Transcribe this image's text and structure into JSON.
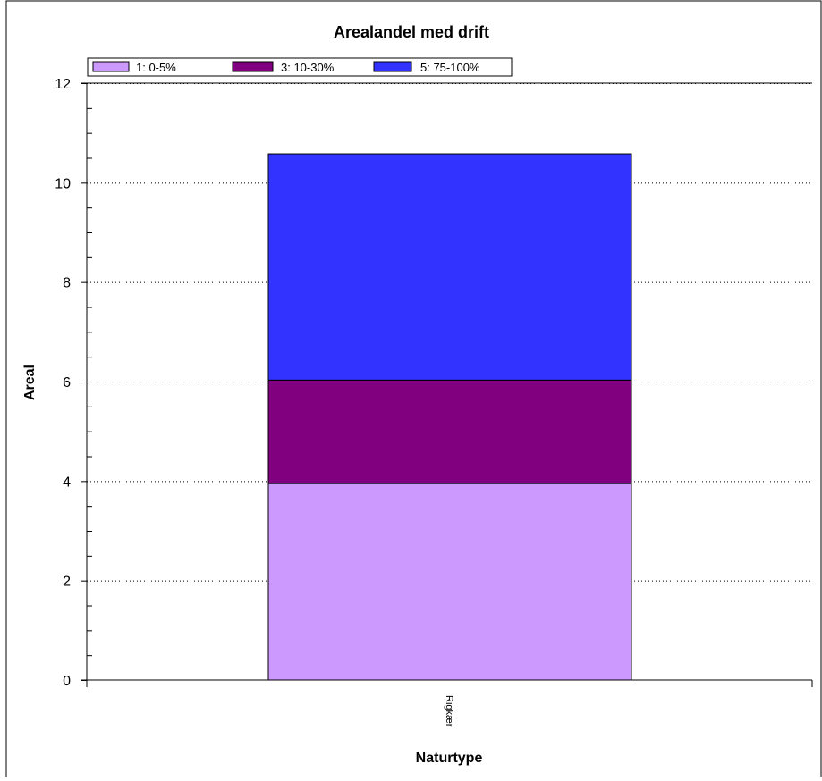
{
  "chart_data": {
    "type": "bar",
    "stacked": true,
    "title": "Arealandel med drift",
    "xlabel": "Naturtype",
    "ylabel": "Areal",
    "categories": [
      "Rigkær"
    ],
    "series": [
      {
        "name": "1: 0-5%",
        "values": [
          3.95
        ],
        "color": "#cc99ff"
      },
      {
        "name": "3: 10-30%",
        "values": [
          2.08
        ],
        "color": "#800080"
      },
      {
        "name": "5: 75-100%",
        "values": [
          4.55
        ],
        "color": "#3333ff"
      }
    ],
    "ylim": [
      0,
      12
    ],
    "yticks": [
      "0",
      "2",
      "4",
      "6",
      "8",
      "10",
      "12"
    ],
    "grid": true,
    "legend_position": "top-left"
  }
}
